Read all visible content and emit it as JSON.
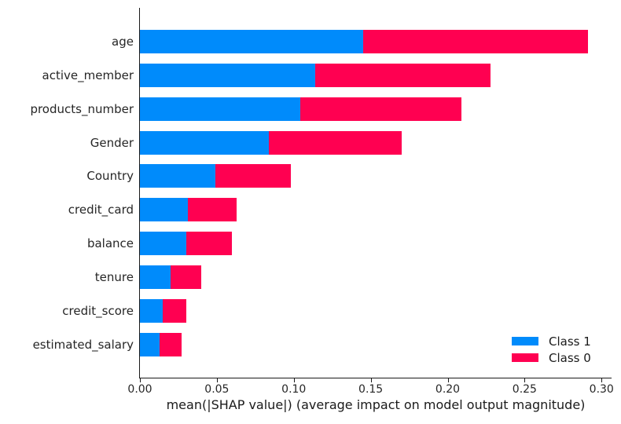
{
  "figure": {
    "background": "#ffffff",
    "text_color": "#262626"
  },
  "chart_data": {
    "type": "bar",
    "orientation": "horizontal",
    "stacked": true,
    "title": "",
    "xlabel": "mean(|SHAP value|) (average impact on model output magnitude)",
    "ylabel": "",
    "grid": false,
    "xlim": [
      0,
      0.3065
    ],
    "xticks": [
      0.0,
      0.05,
      0.1,
      0.15,
      0.2,
      0.25,
      0.3
    ],
    "xtick_labels": [
      "0.00",
      "0.05",
      "0.10",
      "0.15",
      "0.20",
      "0.25",
      "0.30"
    ],
    "categories": [
      "age",
      "active_member",
      "products_number",
      "Gender",
      "Country",
      "credit_card",
      "balance",
      "tenure",
      "credit_score",
      "estimated_salary"
    ],
    "series": [
      {
        "name": "Class 1",
        "color": "#008bfb",
        "values": [
          0.145,
          0.114,
          0.104,
          0.084,
          0.049,
          0.031,
          0.03,
          0.02,
          0.015,
          0.013
        ]
      },
      {
        "name": "Class 0",
        "color": "#ff0051",
        "values": [
          0.146,
          0.114,
          0.105,
          0.086,
          0.049,
          0.032,
          0.03,
          0.02,
          0.015,
          0.014
        ]
      }
    ],
    "legend": {
      "position": "lower right",
      "entries": [
        {
          "label": "Class 1",
          "color": "#008bfb"
        },
        {
          "label": "Class 0",
          "color": "#ff0051"
        }
      ]
    }
  }
}
